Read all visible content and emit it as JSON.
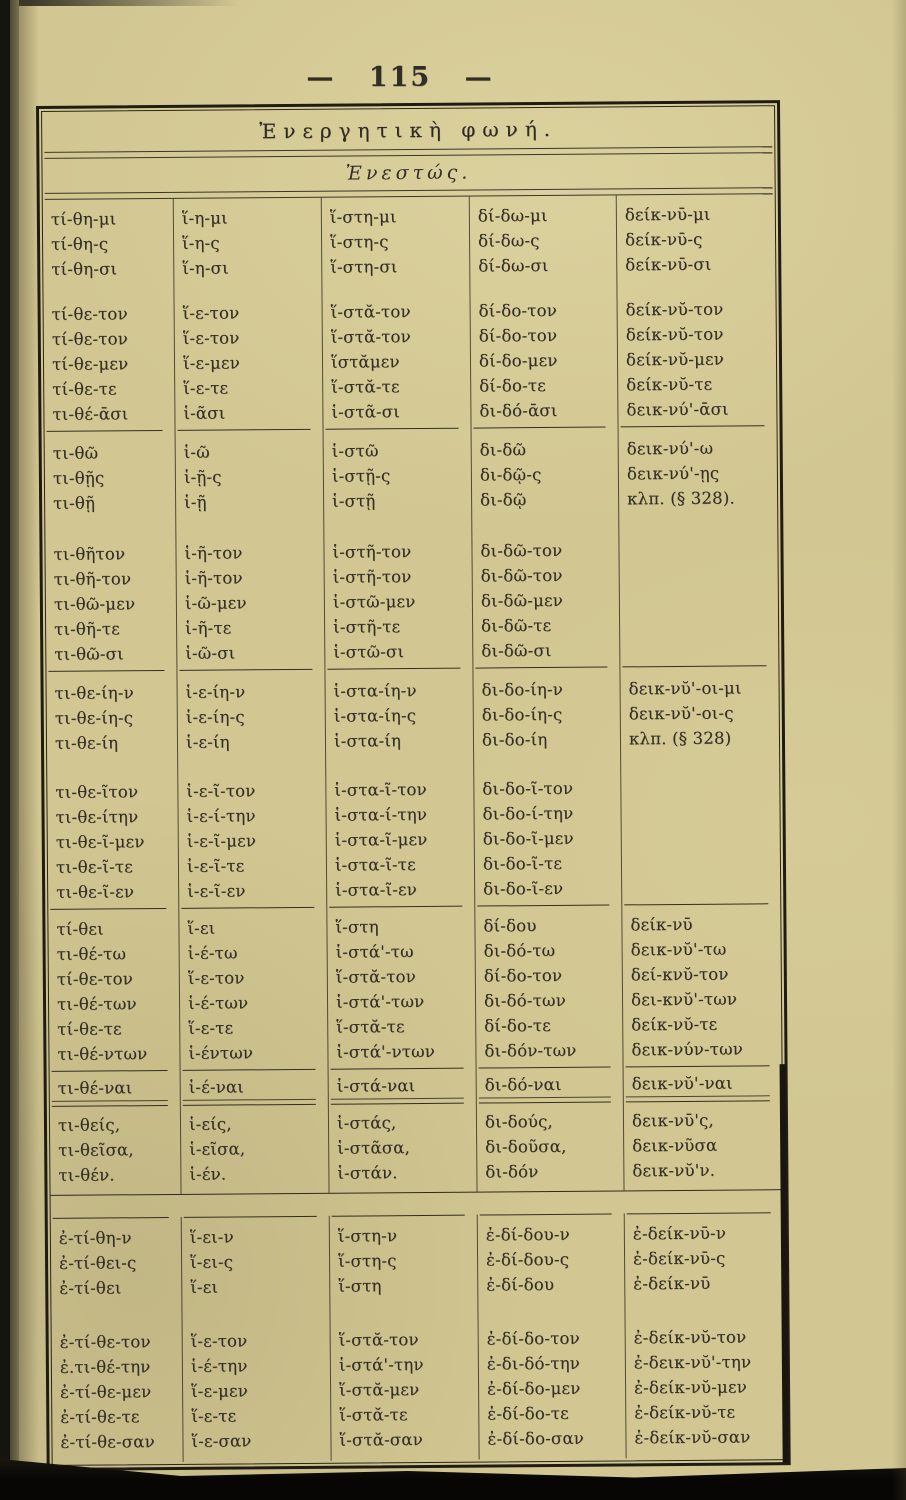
{
  "page": {
    "number": "115",
    "number_display": "— 115 —"
  },
  "colors": {
    "paper": "#d2c792",
    "ink": "#332e25",
    "frame_border": "#201c14",
    "binding_dark": "#15140e",
    "binding_olive": "#6f6a4e",
    "scan_edge": "#0b0a07"
  },
  "table": {
    "title": "Ἐνεργητικὴ φωνή.",
    "subtitle": "Ἐνεστώς.",
    "sections": [
      {
        "id": "present-indicative-singular",
        "rows": [
          [
            "τί-θη-μι",
            "ἵ-η-μι",
            "ἵ-στη-μι",
            "δί-δω-μι",
            "δείκ-νῡ-μι"
          ],
          [
            "τί-θη-ς",
            "ἵ-η-ς",
            "ἵ-στη-ς",
            "δί-δω-ς",
            "δείκ-νῡ-ς"
          ],
          [
            "τί-θη-σι",
            "ἵ-η-σι",
            "ἵ-στη-σι",
            "δί-δω-σι",
            "δείκ-νῡ-σι"
          ]
        ]
      },
      {
        "id": "present-indicative-dual-plural",
        "divider_bottom": true,
        "rows": [
          [
            "τί-θε-τον",
            "ἵ-ε-τον",
            "ἵ-στᾰ-τον",
            "δί-δο-τον",
            "δείκ-νῠ-τον"
          ],
          [
            "τί-θε-τον",
            "ἵ-ε-τον",
            "ἵ-στᾰ-τον",
            "δί-δο-τον",
            "δείκ-νῠ-τον"
          ],
          [
            "τί-θε-μεν",
            "ἵ-ε-μεν",
            "ἵστᾰμεν",
            "δί-δο-μεν",
            "δείκ-νῠ-μεν"
          ],
          [
            "τί-θε-τε",
            "ἵ-ε-τε",
            "ἵ-στᾰ-τε",
            "δί-δο-τε",
            "δείκ-νῠ-τε"
          ],
          [
            "τι-θέ-ᾱσι",
            "ἱ-ᾶσι",
            "ἱ-στᾶ-σι",
            "δι-δό-ᾱσι",
            "δεικ-νύ'-ᾱσι"
          ]
        ]
      },
      {
        "id": "subjunctive-singular",
        "rows": [
          [
            "τι-θῶ",
            "ἱ-ῶ",
            "ἱ-στῶ",
            "δι-δῶ",
            "δεικ-νύ'-ω"
          ],
          [
            "τι-θῇς",
            "ἱ-ῇ-ς",
            "ἱ-στῇ-ς",
            "δι-δῷ-ς",
            "δεικ-νύ'-ῃς"
          ],
          [
            "τι-θῇ",
            "ἱ-ῇ",
            "ἱ-στῇ",
            "δι-δῷ",
            "κλπ. (§ 328)."
          ]
        ]
      },
      {
        "id": "subjunctive-dual-plural",
        "divider_bottom": true,
        "rows": [
          [
            "τι-θῆτον",
            "ἱ-ῆ-τον",
            "ἱ-στῆ-τον",
            "δι-δῶ-τον",
            ""
          ],
          [
            "τι-θῆ-τον",
            "ἱ-ῆ-τον",
            "ἱ-στῆ-τον",
            "δι-δῶ-τον",
            ""
          ],
          [
            "τι-θῶ-μεν",
            "ἱ-ῶ-μεν",
            "ἱ-στῶ-μεν",
            "δι-δῶ-μεν",
            ""
          ],
          [
            "τι-θῆ-τε",
            "ἱ-ῆ-τε",
            "ἱ-στῆ-τε",
            "δι-δῶ-τε",
            ""
          ],
          [
            "τι-θῶ-σι",
            "ἱ-ῶ-σι",
            "ἱ-στῶ-σι",
            "δι-δῶ-σι",
            ""
          ]
        ]
      },
      {
        "id": "optative-singular",
        "rows": [
          [
            "τι-θε-ίη-ν",
            "ἱ-ε-ίη-ν",
            "ἱ-στα-ίη-ν",
            "δι-δο-ίη-ν",
            "δεικ-νῠ'-οι-μι"
          ],
          [
            "τι-θε-ίη-ς",
            "ἱ-ε-ίη-ς",
            "ἱ-στα-ίη-ς",
            "δι-δο-ίη-ς",
            "δεικ-νῠ'-οι-ς"
          ],
          [
            "τι-θε-ίη",
            "ἱ-ε-ίη",
            "ἱ-στα-ίη",
            "δι-δο-ίη",
            "κλπ. (§ 328)"
          ]
        ]
      },
      {
        "id": "optative-dual-plural",
        "divider_bottom": true,
        "rows": [
          [
            "τι-θε-ῖτον",
            "ἱ-ε-ῖ-τον",
            "ἱ-στα-ῖ-τον",
            "δι-δο-ῖ-τον",
            ""
          ],
          [
            "τι-θε-ίτην",
            "ἱ-ε-ί-την",
            "ἱ-στα-ί-την",
            "δι-δο-ί-την",
            ""
          ],
          [
            "τι-θε-ῖ-μεν",
            "ἱ-ε-ῖ-μεν",
            "ἱ-στα-ῖ-μεν",
            "δι-δο-ῖ-μεν",
            ""
          ],
          [
            "τι-θε-ῖ-τε",
            "ἱ-ε-ῖ-τε",
            "ἱ-στα-ῖ-τε",
            "δι-δο-ῖ-τε",
            ""
          ],
          [
            "τι-θε-ῖ-εν",
            "ἱ-ε-ῖ-εν",
            "ἱ-στα-ῖ-εν",
            "δι-δο-ῖ-εν",
            ""
          ]
        ]
      },
      {
        "id": "imperative",
        "divider_bottom": true,
        "rows": [
          [
            "τί-θει",
            "ἵ-ει",
            "ἵ-στη",
            "δί-δου",
            "δείκ-νῡ"
          ],
          [
            "τι-θέ-τω",
            "ἱ-έ-τω",
            "ἱ-στά'-τω",
            "δι-δό-τω",
            "δεικ-νῠ'-τω"
          ],
          [
            "τί-θε-τον",
            "ἵ-ε-τον",
            "ἵ-στᾰ-τον",
            "δί-δο-τον",
            "δεί-κνῠ-τον"
          ],
          [
            "τι-θέ-των",
            "ἱ-έ-των",
            "ἱ-στά'-των",
            "δι-δό-των",
            "δει-κνῠ'-των"
          ],
          [
            "τί-θε-τε",
            "ἵ-ε-τε",
            "ἵ-στᾰ-τε",
            "δί-δο-τε",
            "δείκ-νῠ-τε"
          ],
          [
            "τι-θέ-ντων",
            "ἱ-έντων",
            "ἱ-στά'-ντων",
            "δι-δόν-των",
            "δεικ-νύν-των"
          ]
        ]
      },
      {
        "id": "infinitive",
        "divider_bottom": true,
        "divider_style": "double",
        "rows": [
          [
            "τι-θέ-ναι",
            "ἱ-έ-ναι",
            "ἱ-στά-ναι",
            "δι-δό-ναι",
            "δεικ-νῠ'-ναι"
          ]
        ]
      },
      {
        "id": "participle",
        "divider_bottom_full": true,
        "rows": [
          [
            "τι-θείς,",
            "ἱ-είς,",
            "ἱ-στάς,",
            "δι-δούς,",
            "δεικ-νῡ'ς,"
          ],
          [
            "τι-θεῖσα,",
            "ἱ-εῖσα,",
            "ἱ-στᾶσα,",
            "δι-δοῦσα,",
            "δεικ-νῦσα"
          ],
          [
            "τι-θέν.",
            "ἱ-έν.",
            "ἱ-στάν.",
            "δι-δόν",
            "δεικ-νῠ'ν."
          ]
        ]
      },
      {
        "id": "block-gap",
        "spacer": true
      },
      {
        "id": "imperfect-singular",
        "divider_top": true,
        "rows": [
          [
            "ἐ-τί-θη-ν",
            "ἵ-ει-ν",
            "ἵ-στη-ν",
            "ἐ-δί-δου-ν",
            "ἐ-δείκ-νῡ-ν"
          ],
          [
            "ἐ-τί-θει-ς",
            "ἵ-ει-ς",
            "ἵ-στη-ς",
            "ἐ-δί-δου-ς",
            "ἐ-δείκ-νῡ-ς"
          ],
          [
            "ἐ-τί-θει",
            "ἵ-ει",
            "ἵ-στη",
            "ἐ-δί-δου",
            "ἐ-δείκ-νῡ"
          ]
        ]
      },
      {
        "id": "imperfect-dual-plural",
        "rows": [
          [
            "ἐ-τί-θε-τον",
            "ἵ-ε-τον",
            "ἵ-στᾰ-τον",
            "ἐ-δί-δο-τον",
            "ἐ-δείκ-νῠ-τον"
          ],
          [
            "ἐ.τι-θέ-την",
            "ἱ-έ-την",
            "ἱ-στά'-την",
            "ἐ-δι-δό-την",
            "ἐ-δεικ-νῠ'-την"
          ],
          [
            "ἐ-τί-θε-μεν",
            "ἵ-ε-μεν",
            "ἵ-στᾰ-μεν",
            "ἐ-δί-δο-μεν",
            "ἐ-δείκ-νῠ-μεν"
          ],
          [
            "ἐ-τί-θε-τε",
            "ἵ-ε-τε",
            "ἵ-στᾰ-τε",
            "ἐ-δί-δο-τε",
            "ἐ-δείκ-νῠ-τε"
          ],
          [
            "ἐ-τί-θε-σαν",
            "ἵ-ε-σαν",
            "ἵ-στᾰ-σαν",
            "ἐ-δί-δο-σαν",
            "ἐ-δείκ-νῠ-σαν"
          ]
        ]
      }
    ]
  }
}
